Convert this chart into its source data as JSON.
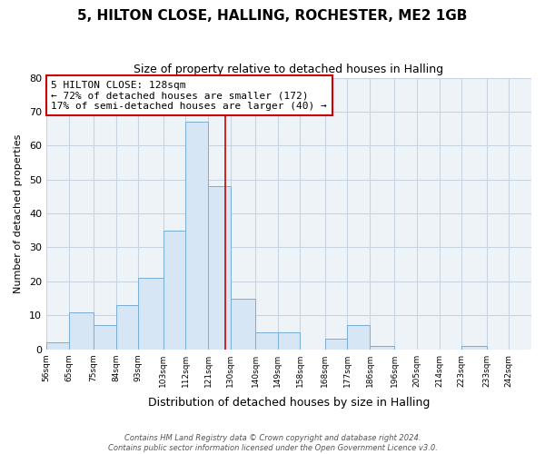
{
  "title": "5, HILTON CLOSE, HALLING, ROCHESTER, ME2 1GB",
  "subtitle": "Size of property relative to detached houses in Halling",
  "xlabel": "Distribution of detached houses by size in Halling",
  "ylabel": "Number of detached properties",
  "bar_color": "#d6e6f4",
  "bar_edge_color": "#7aaed6",
  "bar_left_edges": [
    56,
    65,
    75,
    84,
    93,
    103,
    112,
    121,
    130,
    140,
    149,
    158,
    168,
    177,
    186,
    196,
    205,
    214,
    223,
    233
  ],
  "bar_widths": [
    9,
    10,
    9,
    9,
    10,
    9,
    9,
    9,
    10,
    9,
    9,
    10,
    9,
    9,
    10,
    9,
    9,
    9,
    10,
    9
  ],
  "bar_heights": [
    2,
    11,
    7,
    13,
    21,
    35,
    67,
    48,
    15,
    5,
    5,
    0,
    3,
    7,
    1,
    0,
    0,
    0,
    1,
    0
  ],
  "tick_labels": [
    "56sqm",
    "65sqm",
    "75sqm",
    "84sqm",
    "93sqm",
    "103sqm",
    "112sqm",
    "121sqm",
    "130sqm",
    "140sqm",
    "149sqm",
    "158sqm",
    "168sqm",
    "177sqm",
    "186sqm",
    "196sqm",
    "205sqm",
    "214sqm",
    "223sqm",
    "233sqm",
    "242sqm"
  ],
  "ylim": [
    0,
    80
  ],
  "yticks": [
    0,
    10,
    20,
    30,
    40,
    50,
    60,
    70,
    80
  ],
  "property_line_x": 128,
  "property_line_color": "#cc0000",
  "annotation_box_text": "5 HILTON CLOSE: 128sqm\n← 72% of detached houses are smaller (172)\n17% of semi-detached houses are larger (40) →",
  "annotation_box_color": "#ffffff",
  "annotation_box_edge_color": "#cc0000",
  "footnote1": "Contains HM Land Registry data © Crown copyright and database right 2024.",
  "footnote2": "Contains public sector information licensed under the Open Government Licence v3.0.",
  "bg_color": "#ffffff",
  "plot_bg_color": "#eef3f8",
  "grid_color": "#c8d4e0"
}
